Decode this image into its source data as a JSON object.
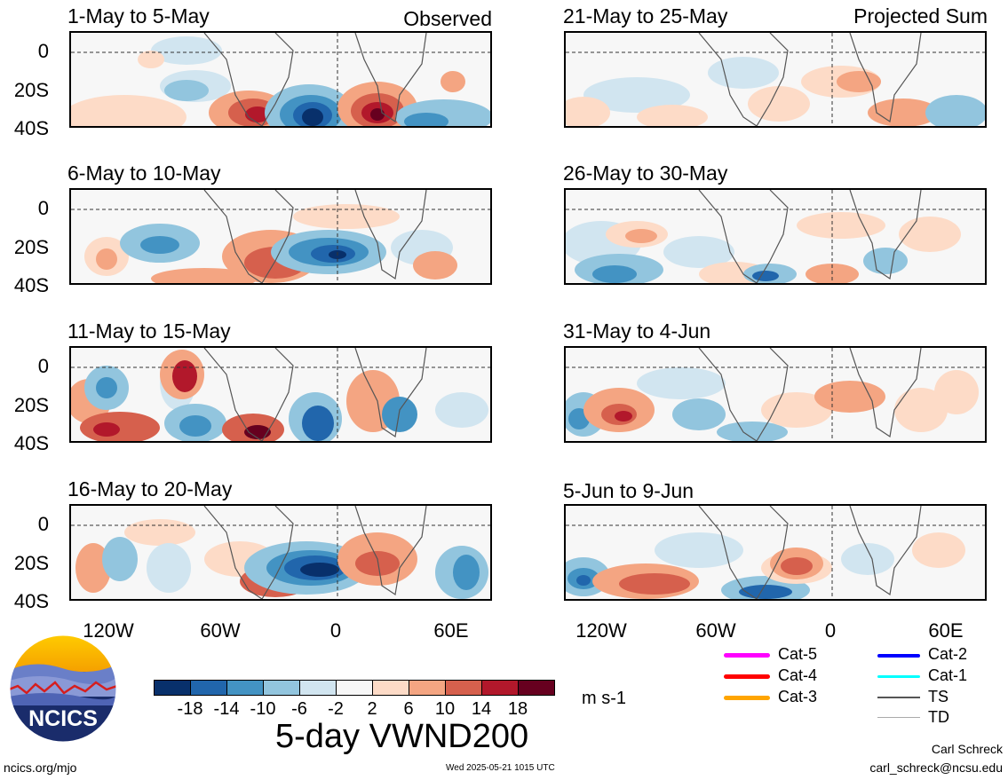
{
  "labels": {
    "observed": "Observed",
    "projected": "Projected Sum",
    "main_title": "5-day VWND200",
    "units": "m s-1",
    "site": "ncics.org/mjo",
    "timestamp": "Wed 2025-05-21 1015 UTC",
    "author": "Carl Schreck",
    "email": "carl_schreck@ncsu.edu",
    "logo_text": "NCICS"
  },
  "panels": [
    {
      "title": "1-May to 5-May"
    },
    {
      "title": "6-May to 10-May"
    },
    {
      "title": "11-May to 15-May"
    },
    {
      "title": "16-May to 20-May"
    },
    {
      "title": "21-May to 25-May"
    },
    {
      "title": "26-May to 30-May"
    },
    {
      "title": "31-May to 4-Jun"
    },
    {
      "title": "5-Jun to 9-Jun"
    }
  ],
  "lat_labels": [
    "0",
    "20S",
    "40S"
  ],
  "lon_labels": [
    "120W",
    "60W",
    "0",
    "60E"
  ],
  "colorbar": {
    "labels": [
      "-18",
      "-14",
      "-10",
      "-6",
      "-2",
      "2",
      "6",
      "10",
      "14",
      "18"
    ],
    "colors": [
      "#08306b",
      "#2166ac",
      "#4393c3",
      "#92c5de",
      "#d1e5f0",
      "#f7f7f7",
      "#fddbc7",
      "#f4a582",
      "#d6604d",
      "#b2182b",
      "#67001f"
    ]
  },
  "legend": [
    {
      "label": "Cat-5",
      "color": "#ff00ff"
    },
    {
      "label": "Cat-4",
      "color": "#ff0000"
    },
    {
      "label": "Cat-3",
      "color": "#ffa500"
    },
    {
      "label": "Cat-2",
      "color": "#0000ff"
    },
    {
      "label": "Cat-1",
      "color": "#00ffff"
    },
    {
      "label": "TS",
      "color": "#555555"
    },
    {
      "label": "TD",
      "color": "#aaaaaa"
    }
  ]
}
